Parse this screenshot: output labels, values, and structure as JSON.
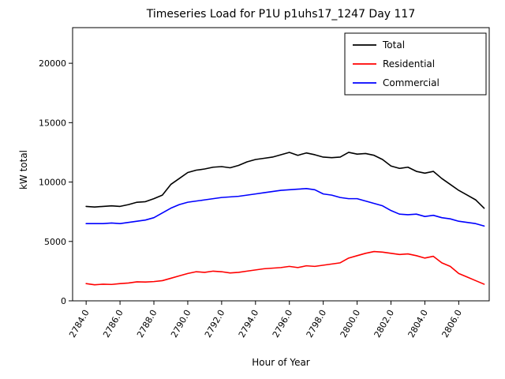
{
  "figure": {
    "title": "Timeseries Load for P1U p1uhs17_1247  Day 117",
    "xlabel": "Hour of Year",
    "ylabel": "kW total"
  },
  "chart_data": {
    "type": "line",
    "title": "Timeseries Load for P1U p1uhs17_1247  Day 117",
    "xlabel": "Hour of Year",
    "ylabel": "kW total",
    "xlim": [
      2783.2,
      2807.8
    ],
    "ylim": [
      0,
      23000
    ],
    "xtick_labels": [
      "2784.0",
      "2786.0",
      "2788.0",
      "2790.0",
      "2792.0",
      "2794.0",
      "2796.0",
      "2798.0",
      "2800.0",
      "2802.0",
      "2804.0",
      "2806.0"
    ],
    "ytick_labels": [
      "0",
      "5000",
      "10000",
      "15000",
      "20000"
    ],
    "legend_position": "upper right",
    "grid": false,
    "x": [
      2784.0,
      2784.5,
      2785.0,
      2785.5,
      2786.0,
      2786.5,
      2787.0,
      2787.5,
      2788.0,
      2788.5,
      2789.0,
      2789.5,
      2790.0,
      2790.5,
      2791.0,
      2791.5,
      2792.0,
      2792.5,
      2793.0,
      2793.5,
      2794.0,
      2794.5,
      2795.0,
      2795.5,
      2796.0,
      2796.5,
      2797.0,
      2797.5,
      2798.0,
      2798.5,
      2799.0,
      2799.5,
      2800.0,
      2800.5,
      2801.0,
      2801.5,
      2802.0,
      2802.5,
      2803.0,
      2803.5,
      2804.0,
      2804.5,
      2805.0,
      2805.5,
      2806.0,
      2806.5,
      2807.0,
      2807.5
    ],
    "series": [
      {
        "name": "Total",
        "color": "#000000",
        "values": [
          7950,
          7900,
          7950,
          8000,
          7950,
          8100,
          8300,
          8350,
          8600,
          8900,
          9800,
          10300,
          10800,
          11000,
          11100,
          11250,
          11300,
          11200,
          11400,
          11700,
          11900,
          12000,
          12100,
          12300,
          12500,
          12250,
          12450,
          12300,
          12100,
          12050,
          12100,
          12500,
          12350,
          12400,
          12250,
          11900,
          11350,
          11150,
          11250,
          10900,
          10750,
          10900,
          10300,
          9800,
          9300,
          8900,
          8500,
          7800
        ]
      },
      {
        "name": "Residential",
        "color": "#ff0000",
        "values": [
          1450,
          1350,
          1400,
          1380,
          1450,
          1500,
          1600,
          1580,
          1620,
          1700,
          1900,
          2100,
          2300,
          2450,
          2400,
          2500,
          2450,
          2350,
          2400,
          2500,
          2600,
          2700,
          2750,
          2800,
          2900,
          2800,
          2950,
          2900,
          3000,
          3100,
          3200,
          3600,
          3800,
          4000,
          4150,
          4100,
          4000,
          3900,
          3950,
          3800,
          3600,
          3750,
          3200,
          2900,
          2300,
          2000,
          1700,
          1400
        ]
      },
      {
        "name": "Commercial",
        "color": "#0000ff",
        "values": [
          6500,
          6500,
          6500,
          6550,
          6500,
          6600,
          6700,
          6800,
          7000,
          7400,
          7800,
          8100,
          8300,
          8400,
          8500,
          8600,
          8700,
          8750,
          8800,
          8900,
          9000,
          9100,
          9200,
          9300,
          9350,
          9400,
          9450,
          9350,
          9000,
          8900,
          8700,
          8600,
          8600,
          8400,
          8200,
          8000,
          7600,
          7300,
          7250,
          7300,
          7100,
          7200,
          7000,
          6900,
          6700,
          6600,
          6500,
          6300
        ]
      }
    ]
  }
}
